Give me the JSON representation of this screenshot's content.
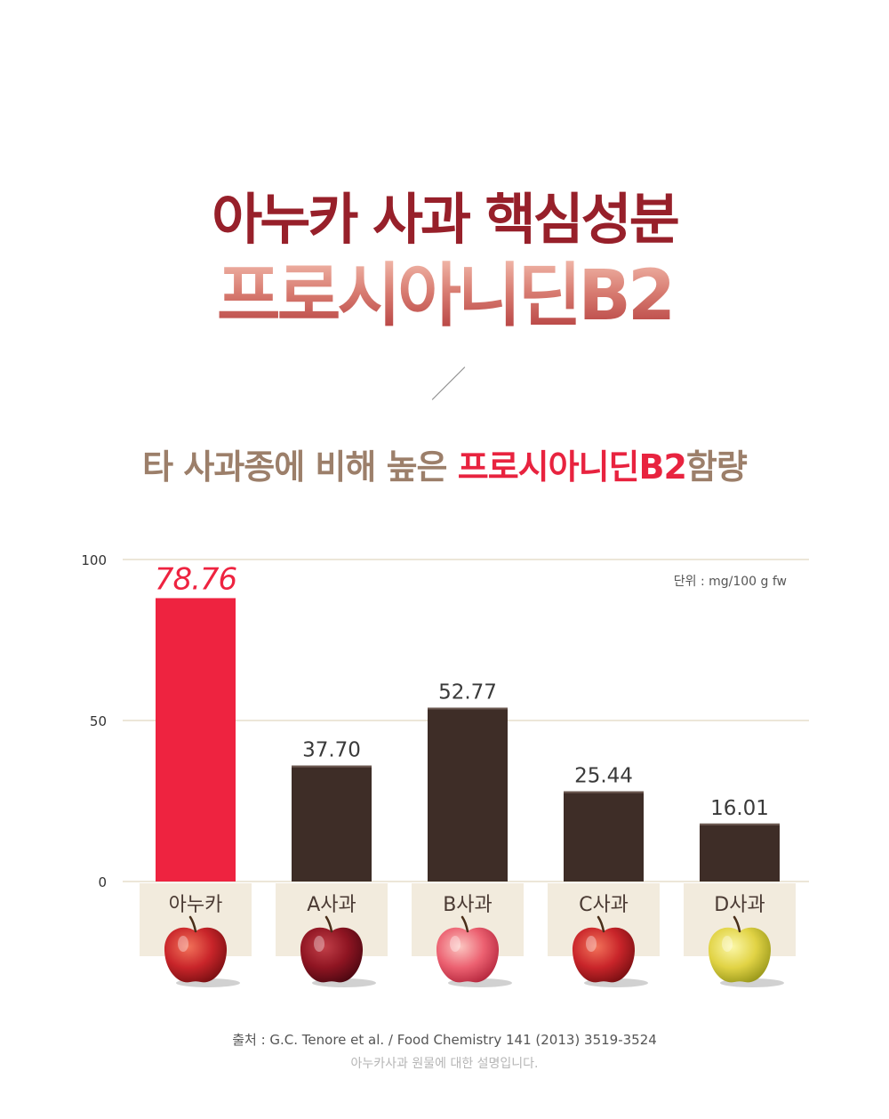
{
  "header": {
    "title_line1": "아누카 사과 핵심성분",
    "title_line2": "프로시아니딘B2",
    "subtitle_prefix": "타 사과종에 비해 높은 ",
    "subtitle_highlight": "프로시아니딘B2",
    "subtitle_suffix": "함량"
  },
  "chart_data": {
    "type": "bar",
    "title": "",
    "xlabel": "",
    "ylabel": "",
    "unit_label": "단위 : mg/100 g fw",
    "categories": [
      "아누카",
      "A사과",
      "B사과",
      "C사과",
      "D사과"
    ],
    "value_labels": [
      "78.76",
      "37.70",
      "52.77",
      "25.44",
      "16.01"
    ],
    "values": [
      78.76,
      37.7,
      52.77,
      25.44,
      16.01
    ],
    "display_heights": [
      88,
      36,
      54,
      28,
      18
    ],
    "yticks": [
      "0",
      "50",
      "100"
    ],
    "ylim": [
      0,
      100
    ],
    "grid": true,
    "colors": {
      "highlight": "#ee2340",
      "bar": "#3e2d27",
      "category_bg": "#f2ebdd",
      "grid": "#ece6d8"
    },
    "apple_icons": [
      "red-apple-icon",
      "dark-red-apple-icon",
      "pink-apple-icon",
      "red-apple-icon",
      "yellow-apple-icon"
    ]
  },
  "footer": {
    "source": "출처 : G.C. Tenore et al. / Food Chemistry 141 (2013) 3519-3524",
    "note": "아누카사과 원물에 대한 설명입니다."
  }
}
